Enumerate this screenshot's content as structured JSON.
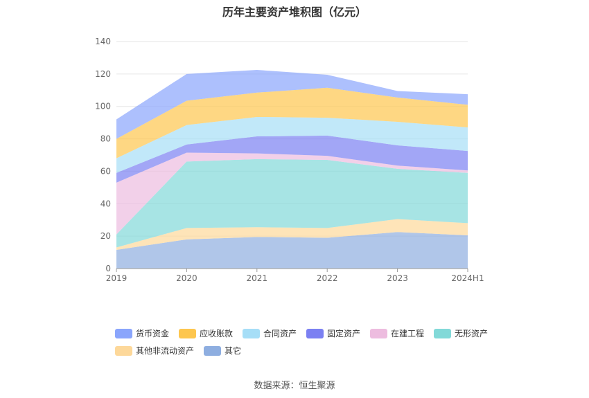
{
  "chart_data": {
    "type": "area",
    "stacked": true,
    "title": "历年主要资产堆积图（亿元）",
    "categories": [
      "2019",
      "2020",
      "2021",
      "2022",
      "2023",
      "2024H1"
    ],
    "ylim": [
      0,
      140
    ],
    "yticks": [
      0,
      20,
      40,
      60,
      80,
      100,
      120,
      140
    ],
    "grid": true,
    "legend_position": "bottom",
    "series": [
      {
        "name": "其它",
        "color": "#8eaee0",
        "values": [
          11.5,
          18,
          19.5,
          19,
          22.5,
          20.5
        ]
      },
      {
        "name": "其他非流动资产",
        "color": "#fdd89a",
        "values": [
          1.5,
          7,
          6,
          6,
          8,
          7.5
        ]
      },
      {
        "name": "无形资产",
        "color": "#82d9d8",
        "values": [
          8,
          41,
          42,
          42,
          31,
          31
        ]
      },
      {
        "name": "在建工程",
        "color": "#edbcdf",
        "values": [
          32,
          5.5,
          3.5,
          2.5,
          2,
          1.5
        ]
      },
      {
        "name": "固定资产",
        "color": "#7b80f2",
        "values": [
          6,
          5,
          10.5,
          12.5,
          12.5,
          12
        ]
      },
      {
        "name": "合同资产",
        "color": "#a6def7",
        "values": [
          9,
          12,
          12,
          11,
          14.5,
          14.5
        ]
      },
      {
        "name": "应收账款",
        "color": "#fdc64e",
        "values": [
          12,
          15,
          15,
          18.5,
          15,
          14
        ]
      },
      {
        "name": "货币资金",
        "color": "#8aa5fc",
        "values": [
          12,
          16.5,
          14,
          8,
          4,
          6.5
        ]
      }
    ],
    "legend_order": [
      "货币资金",
      "应收账款",
      "合同资产",
      "固定资产",
      "在建工程",
      "无形资产",
      "其他非流动资产",
      "其它"
    ]
  },
  "source_note": "数据来源：恒生聚源"
}
